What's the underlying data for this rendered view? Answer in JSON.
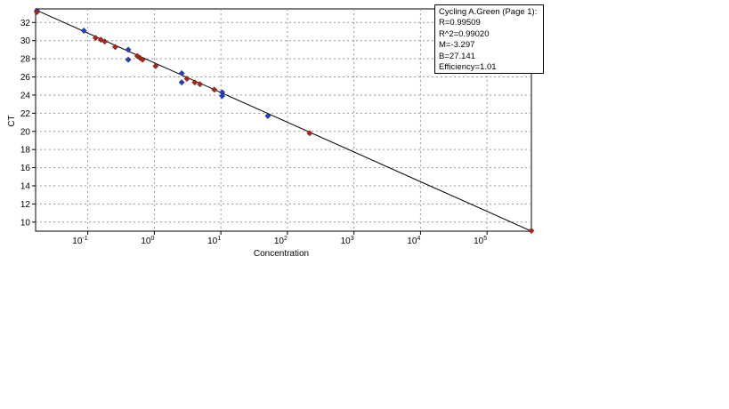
{
  "chart_data": {
    "type": "scatter",
    "title": "",
    "xlabel": "Concentration",
    "ylabel": "CT",
    "ylim": [
      9,
      33.5
    ],
    "xlim": [
      0,
      19
    ],
    "x_ticks": [
      {
        "x": 2.0,
        "base": "10",
        "exp": "-1"
      },
      {
        "x": 4.55,
        "base": "10",
        "exp": "0"
      },
      {
        "x": 7.1,
        "base": "10",
        "exp": "1"
      },
      {
        "x": 9.65,
        "base": "10",
        "exp": "2"
      },
      {
        "x": 12.2,
        "base": "10",
        "exp": "3"
      },
      {
        "x": 14.75,
        "base": "10",
        "exp": "4"
      },
      {
        "x": 17.3,
        "base": "10",
        "exp": "5"
      }
    ],
    "y_ticks": [
      10,
      12,
      14,
      16,
      18,
      20,
      22,
      24,
      26,
      28,
      30,
      32
    ],
    "grid": true,
    "fit_line": {
      "x": [
        0,
        19
      ],
      "y": [
        33.4,
        9.0
      ]
    },
    "series": [
      {
        "color": "#1f3fd0",
        "points": [
          {
            "x": 0.05,
            "y": 33.3
          },
          {
            "x": 1.85,
            "y": 31.1
          },
          {
            "x": 3.55,
            "y": 29.0
          },
          {
            "x": 3.55,
            "y": 27.9
          },
          {
            "x": 5.6,
            "y": 26.4
          },
          {
            "x": 5.6,
            "y": 25.4
          },
          {
            "x": 7.15,
            "y": 24.3
          },
          {
            "x": 7.15,
            "y": 23.9
          },
          {
            "x": 8.9,
            "y": 21.7
          }
        ]
      },
      {
        "color": "#b02418",
        "points": [
          {
            "x": 0.05,
            "y": 33.15
          },
          {
            "x": 2.3,
            "y": 30.3
          },
          {
            "x": 2.5,
            "y": 30.1
          },
          {
            "x": 2.65,
            "y": 29.9
          },
          {
            "x": 3.05,
            "y": 29.3
          },
          {
            "x": 3.9,
            "y": 28.3
          },
          {
            "x": 4.0,
            "y": 28.1
          },
          {
            "x": 4.1,
            "y": 27.9
          },
          {
            "x": 4.6,
            "y": 27.2
          },
          {
            "x": 5.8,
            "y": 25.8
          },
          {
            "x": 6.1,
            "y": 25.4
          },
          {
            "x": 6.3,
            "y": 25.2
          },
          {
            "x": 6.85,
            "y": 24.6
          },
          {
            "x": 10.5,
            "y": 19.8
          },
          {
            "x": 19.0,
            "y": 9.05
          }
        ]
      }
    ],
    "stats_box": {
      "lines": [
        "Cycling A.Green (Page 1):",
        "R=0.99509",
        "R^2=0.99020",
        "M=-3.297",
        "B=27.141",
        "Efficiency=1.01"
      ],
      "placement": "top-right"
    }
  }
}
